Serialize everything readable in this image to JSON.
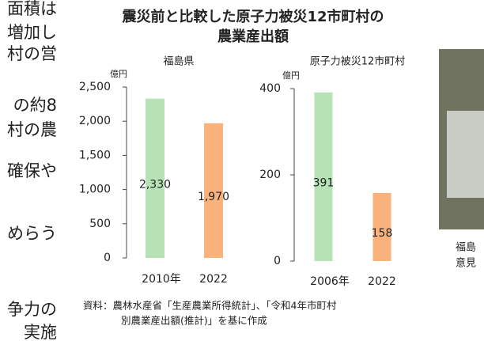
{
  "figure_title": [
    "震災前と比較した原子力被災12市町村の",
    "農業産出額"
  ],
  "chart_data": [
    {
      "type": "bar",
      "title": "福島県",
      "unit": "億円",
      "categories": [
        "2010年",
        "2022"
      ],
      "values": [
        2330,
        1970
      ],
      "value_labels": [
        "2,330",
        "1,970"
      ],
      "colors": [
        "#b6e2b6",
        "#f9b27c"
      ],
      "ylim": [
        0,
        2500
      ],
      "yticks": [
        0,
        500,
        {
          "value": 1000,
          "label": "1,000"
        },
        {
          "value": 1500,
          "label": "1,500"
        },
        {
          "value": 2000,
          "label": "2,000"
        },
        {
          "value": 2500,
          "label": "2,500"
        }
      ]
    },
    {
      "type": "bar",
      "title": "原子力被災12市町村",
      "unit": "億円",
      "categories": [
        "2006年",
        "2022"
      ],
      "values": [
        391,
        158
      ],
      "colors": [
        "#b6e2b6",
        "#f9b27c"
      ],
      "ylim": [
        0,
        400
      ],
      "yticks": [
        0,
        200,
        400
      ]
    }
  ],
  "source": [
    "資料：農林水産省「生産農業所得統計」、「令和4年市町村",
    "別農業産出額(推計)」を基に作成"
  ],
  "side_text": [
    "面積は",
    "増加し",
    "村の営",
    "の約8",
    "村の農",
    "確保や",
    "めらう",
    "争力の",
    "実施"
  ],
  "caption": [
    "福島",
    "意見"
  ]
}
